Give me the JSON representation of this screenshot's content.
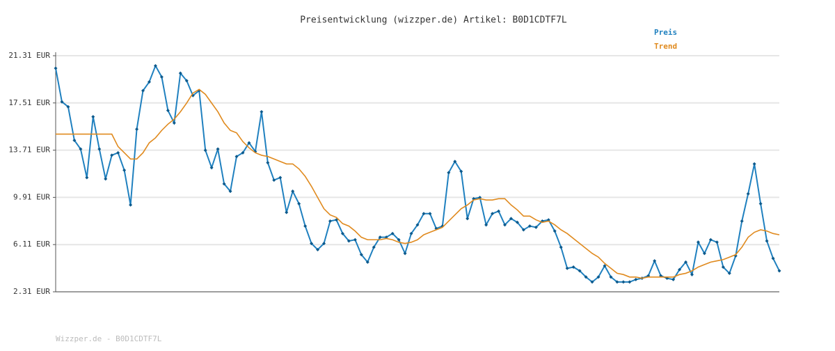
{
  "chart_data": {
    "type": "line",
    "title": "Preisentwicklung (wizzper.de) Artikel: B0D1CDTF7L",
    "footer": "Wizzper.de - B0D1CDTF7L",
    "ylim": [
      2.31,
      21.31
    ],
    "yticks": [
      {
        "value": 2.31,
        "label": "2.31 EUR"
      },
      {
        "value": 6.11,
        "label": "6.11 EUR"
      },
      {
        "value": 9.91,
        "label": "9.91 EUR"
      },
      {
        "value": 13.71,
        "label": "13.71 EUR"
      },
      {
        "value": 17.51,
        "label": "17.51 EUR"
      },
      {
        "value": 21.31,
        "label": "21.31 EUR"
      }
    ],
    "grid": true,
    "series": [
      {
        "name": "Preis",
        "color": "#1f80bf",
        "markers": true,
        "values": [
          20.3,
          17.6,
          17.2,
          14.5,
          13.8,
          11.5,
          16.4,
          13.8,
          11.4,
          13.3,
          13.5,
          12.1,
          9.3,
          15.4,
          18.5,
          19.2,
          20.5,
          19.6,
          16.9,
          15.9,
          19.9,
          19.3,
          18.1,
          18.5,
          13.7,
          12.3,
          13.8,
          11.0,
          10.4,
          13.2,
          13.5,
          14.3,
          13.6,
          16.8,
          12.7,
          11.3,
          11.5,
          8.7,
          10.4,
          9.4,
          7.6,
          6.2,
          5.7,
          6.2,
          8.0,
          8.1,
          7.0,
          6.4,
          6.5,
          5.3,
          4.7,
          5.9,
          6.7,
          6.7,
          7.0,
          6.5,
          5.4,
          7.0,
          7.7,
          8.6,
          8.6,
          7.4,
          7.6,
          11.9,
          12.8,
          12.0,
          8.2,
          9.8,
          9.9,
          7.7,
          8.6,
          8.8,
          7.7,
          8.2,
          7.9,
          7.3,
          7.6,
          7.5,
          8.0,
          8.1,
          7.2,
          5.9,
          4.2,
          4.3,
          4.0,
          3.5,
          3.1,
          3.5,
          4.4,
          3.5,
          3.1,
          3.1,
          3.1,
          3.3,
          3.4,
          3.6,
          4.8,
          3.6,
          3.4,
          3.3,
          4.1,
          4.7,
          3.7,
          6.3,
          5.4,
          6.5,
          6.3,
          4.3,
          3.8,
          5.2,
          8.0,
          10.2,
          12.6,
          9.4,
          6.4,
          5.0,
          4.0
        ]
      },
      {
        "name": "Trend",
        "color": "#e08a1e",
        "markers": false,
        "values": [
          15.0,
          15.0,
          15.0,
          15.0,
          15.0,
          15.0,
          15.0,
          15.0,
          15.0,
          15.0,
          14.0,
          13.5,
          13.0,
          13.0,
          13.5,
          14.3,
          14.7,
          15.3,
          15.8,
          16.2,
          16.8,
          17.5,
          18.3,
          18.6,
          18.2,
          17.5,
          16.8,
          15.9,
          15.3,
          15.1,
          14.4,
          13.9,
          13.5,
          13.3,
          13.2,
          13.0,
          12.8,
          12.6,
          12.6,
          12.2,
          11.6,
          10.8,
          9.9,
          9.0,
          8.5,
          8.3,
          7.8,
          7.6,
          7.2,
          6.7,
          6.5,
          6.5,
          6.5,
          6.6,
          6.5,
          6.3,
          6.2,
          6.3,
          6.5,
          6.9,
          7.1,
          7.3,
          7.5,
          8.0,
          8.5,
          9.0,
          9.3,
          9.7,
          9.8,
          9.7,
          9.7,
          9.8,
          9.8,
          9.3,
          8.9,
          8.4,
          8.4,
          8.1,
          7.9,
          8.0,
          7.7,
          7.3,
          7.0,
          6.6,
          6.2,
          5.8,
          5.4,
          5.1,
          4.6,
          4.2,
          3.8,
          3.7,
          3.5,
          3.5,
          3.4,
          3.5,
          3.5,
          3.5,
          3.5,
          3.5,
          3.7,
          3.8,
          4.0,
          4.3,
          4.5,
          4.7,
          4.8,
          4.9,
          5.1,
          5.3,
          5.9,
          6.7,
          7.1,
          7.3,
          7.2,
          7.0,
          6.9
        ]
      }
    ]
  }
}
